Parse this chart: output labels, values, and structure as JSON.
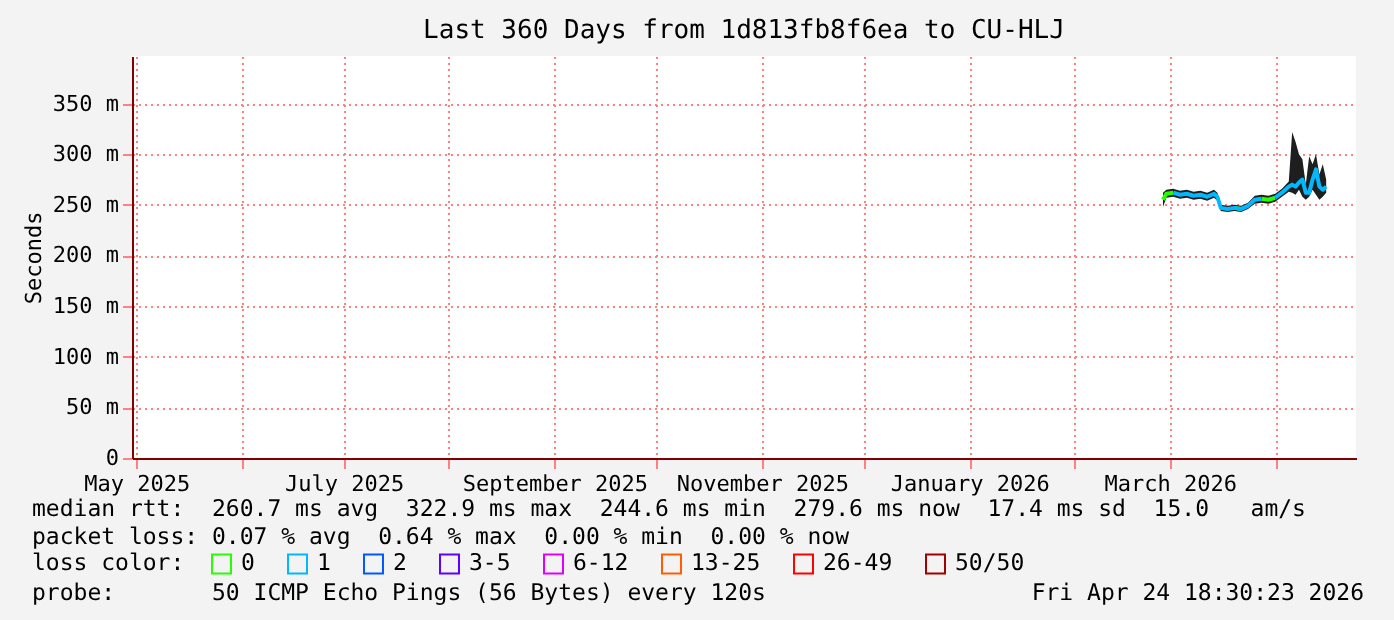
{
  "chart_data": {
    "type": "line",
    "title": "Last 360 Days from 1d813fb8f6ea to CU-HLJ",
    "ylabel": "Seconds",
    "legend_title": "loss color:",
    "legend": "bottom",
    "grid": true,
    "line_style": "solid",
    "x": [
      "2026-02-27",
      "2026-02-28",
      "2026-03-02",
      "2026-03-04",
      "2026-03-06",
      "2026-03-08",
      "2026-03-10",
      "2026-03-12",
      "2026-03-14",
      "2026-03-15",
      "2026-03-16",
      "2026-03-18",
      "2026-03-20",
      "2026-03-22",
      "2026-03-24",
      "2026-03-26",
      "2026-03-28",
      "2026-03-30",
      "2026-04-01",
      "2026-04-03",
      "2026-04-05",
      "2026-04-06",
      "2026-04-07",
      "2026-04-08",
      "2026-04-09",
      "2026-04-10",
      "2026-04-11",
      "2026-04-12",
      "2026-04-13",
      "2026-04-14",
      "2026-04-15",
      "2026-04-16"
    ],
    "xlim": [
      "2025-04-29T18:30",
      "2026-04-24T18:30"
    ],
    "xticks": [
      {
        "value": "2025-05-01",
        "label": "May 2025"
      },
      {
        "value": "2025-06-01",
        "label": null
      },
      {
        "value": "2025-07-01",
        "label": "July 2025"
      },
      {
        "value": "2025-08-01",
        "label": null
      },
      {
        "value": "2025-09-01",
        "label": "September 2025"
      },
      {
        "value": "2025-10-01",
        "label": null
      },
      {
        "value": "2025-11-01",
        "label": "November 2025"
      },
      {
        "value": "2025-12-01",
        "label": null
      },
      {
        "value": "2026-01-01",
        "label": "January 2026"
      },
      {
        "value": "2026-02-01",
        "label": null
      },
      {
        "value": "2026-03-01",
        "label": "March 2026"
      },
      {
        "value": "2026-04-01",
        "label": null
      }
    ],
    "ylim": [
      0,
      397
    ],
    "yticks": [
      0,
      {
        "value": 50,
        "label": "50 m"
      },
      {
        "value": 100,
        "label": "100 m"
      },
      {
        "value": 150,
        "label": "150 m"
      },
      {
        "value": 200,
        "label": "200 m"
      },
      {
        "value": 250,
        "label": "250 m"
      },
      {
        "value": 300,
        "label": "300 m"
      },
      {
        "value": 350,
        "label": "350 m"
      }
    ],
    "series": [
      {
        "type": "area",
        "color": "#1e1e1e",
        "values": [
          null,
          null,
          null,
          null,
          null,
          null,
          null,
          null,
          null,
          null,
          null,
          null,
          null,
          null,
          null,
          null,
          null,
          null,
          null,
          null,
          null,
          null,
          null,
          null,
          null,
          null,
          null,
          null,
          null,
          null,
          null,
          null
        ],
        "lower": [
          248,
          257,
          258,
          256,
          257,
          255,
          256,
          254,
          257,
          254,
          244,
          243,
          244,
          243,
          246,
          251,
          252,
          251,
          253,
          258,
          263,
          262,
          260,
          265,
          258,
          255,
          258,
          265,
          260,
          255,
          258,
          262
        ],
        "upper": [
          262,
          265,
          266,
          264,
          265,
          263,
          264,
          262,
          265,
          262,
          250,
          249,
          250,
          249,
          252,
          259,
          260,
          259,
          261,
          266,
          273,
          322,
          312,
          300,
          295,
          270,
          298,
          290,
          300,
          280,
          290,
          275
        ]
      },
      {
        "name": "0",
        "color": "#26ff00",
        "values": [
          255,
          261,
          262,
          null,
          null,
          null,
          null,
          null,
          null,
          null,
          null,
          null,
          247,
          246,
          null,
          null,
          256,
          255,
          257,
          null,
          null,
          null,
          null,
          null,
          null,
          null,
          null,
          null,
          null,
          null,
          null,
          null
        ]
      },
      {
        "name": "1",
        "color": "#00b8ff",
        "values": [
          null,
          null,
          262,
          260,
          261,
          259,
          260,
          258,
          261,
          258,
          247,
          246,
          247,
          246,
          249,
          255,
          256,
          null,
          257,
          262,
          268,
          270,
          268,
          272,
          275,
          262,
          262,
          275,
          285,
          268,
          265,
          268
        ]
      },
      {
        "name": "2",
        "color": "#0059ff",
        "values": [
          null,
          null,
          null,
          null,
          null,
          null,
          null,
          null,
          null,
          null,
          null,
          null,
          null,
          null,
          null,
          null,
          null,
          null,
          null,
          null,
          null,
          null,
          null,
          null,
          null,
          null,
          null,
          null,
          null,
          null,
          null,
          null
        ]
      },
      {
        "name": "3-5",
        "color": "#5e00ff",
        "values": [
          null,
          null,
          null,
          null,
          null,
          null,
          null,
          null,
          null,
          null,
          null,
          null,
          null,
          null,
          null,
          null,
          null,
          null,
          null,
          null,
          null,
          null,
          null,
          null,
          null,
          null,
          null,
          null,
          null,
          null,
          null,
          null
        ]
      },
      {
        "name": "6-12",
        "color": "#dd00ff",
        "values": [
          null,
          null,
          null,
          null,
          null,
          null,
          null,
          null,
          null,
          null,
          null,
          null,
          null,
          null,
          null,
          null,
          null,
          null,
          null,
          null,
          null,
          null,
          null,
          null,
          null,
          null,
          null,
          null,
          null,
          null,
          null,
          null
        ]
      },
      {
        "name": "13-25",
        "color": "#ff5e00",
        "values": [
          null,
          null,
          null,
          null,
          null,
          null,
          null,
          null,
          null,
          null,
          null,
          null,
          null,
          null,
          null,
          null,
          null,
          null,
          null,
          null,
          null,
          null,
          null,
          null,
          null,
          null,
          null,
          null,
          null,
          null,
          null,
          null
        ]
      },
      {
        "name": "26-49",
        "color": "#ff0000",
        "values": [
          null,
          null,
          null,
          null,
          null,
          null,
          null,
          null,
          null,
          null,
          null,
          null,
          null,
          null,
          null,
          null,
          null,
          null,
          null,
          null,
          null,
          null,
          null,
          null,
          null,
          null,
          null,
          null,
          null,
          null,
          null,
          null
        ]
      },
      {
        "name": "50/50",
        "color": "#a00000",
        "values": [
          null,
          null,
          null,
          null,
          null,
          null,
          null,
          null,
          null,
          null,
          null,
          null,
          null,
          null,
          null,
          null,
          null,
          null,
          null,
          null,
          null,
          null,
          null,
          null,
          null,
          null,
          null,
          null,
          null,
          null,
          null,
          null
        ]
      }
    ],
    "annotations": [
      "median rtt:  260.7 ms avg  322.9 ms max  244.6 ms min  279.6 ms now  17.4 ms sd  15.0   am/s",
      "packet loss: 0.07 % avg  0.64 % max  0.00 % min  0.00 % now",
      "probe:       50 ICMP Echo Pings (56 Bytes) every 120s",
      "Fri Apr 24 18:30:23 2026"
    ]
  }
}
